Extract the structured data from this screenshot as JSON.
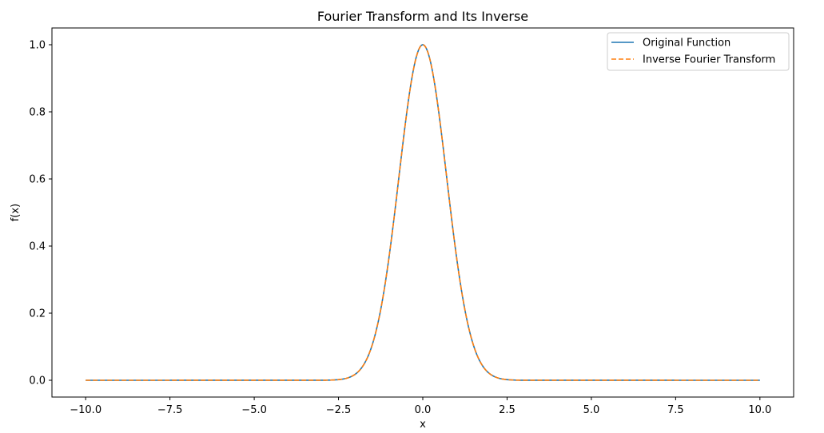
{
  "chart_data": {
    "type": "line",
    "title": "Fourier Transform and Its Inverse",
    "xlabel": "x",
    "ylabel": "f(x)",
    "xlim": [
      -11.0,
      11.0
    ],
    "ylim": [
      -0.05,
      1.05
    ],
    "xticks": [
      -10.0,
      -7.5,
      -5.0,
      -2.5,
      0.0,
      2.5,
      5.0,
      7.5,
      10.0
    ],
    "xtick_labels": [
      "−10.0",
      "−7.5",
      "−5.0",
      "−2.5",
      "0.0",
      "2.5",
      "5.0",
      "7.5",
      "10.0"
    ],
    "yticks": [
      0.0,
      0.2,
      0.4,
      0.6,
      0.8,
      1.0
    ],
    "ytick_labels": [
      "0.0",
      "0.2",
      "0.4",
      "0.6",
      "0.8",
      "1.0"
    ],
    "grid": false,
    "legend_position": "top-right",
    "x": [
      -10.0,
      -3.0,
      -2.5,
      -2.25,
      -2.0,
      -1.75,
      -1.5,
      -1.25,
      -1.0,
      -0.75,
      -0.5,
      -0.25,
      0.0,
      0.25,
      0.5,
      0.75,
      1.0,
      1.25,
      1.5,
      1.75,
      2.0,
      2.25,
      2.5,
      3.0,
      10.0
    ],
    "series": [
      {
        "name": "Original Function",
        "color": "#1f77b4",
        "style": "solid",
        "values": [
          0.0,
          0.0001,
          0.0019,
          0.0063,
          0.0183,
          0.0468,
          0.1054,
          0.2096,
          0.3679,
          0.5698,
          0.7788,
          0.9394,
          1.0,
          0.9394,
          0.7788,
          0.5698,
          0.3679,
          0.2096,
          0.1054,
          0.0468,
          0.0183,
          0.0063,
          0.0019,
          0.0001,
          0.0
        ]
      },
      {
        "name": "Inverse Fourier Transform",
        "color": "#ff7f0e",
        "style": "dashed",
        "values": [
          0.0,
          0.0001,
          0.0019,
          0.0063,
          0.0183,
          0.0468,
          0.1054,
          0.2096,
          0.3679,
          0.5698,
          0.7788,
          0.9394,
          1.0,
          0.9394,
          0.7788,
          0.5698,
          0.3679,
          0.2096,
          0.1054,
          0.0468,
          0.0183,
          0.0063,
          0.0019,
          0.0001,
          0.0
        ]
      }
    ]
  }
}
